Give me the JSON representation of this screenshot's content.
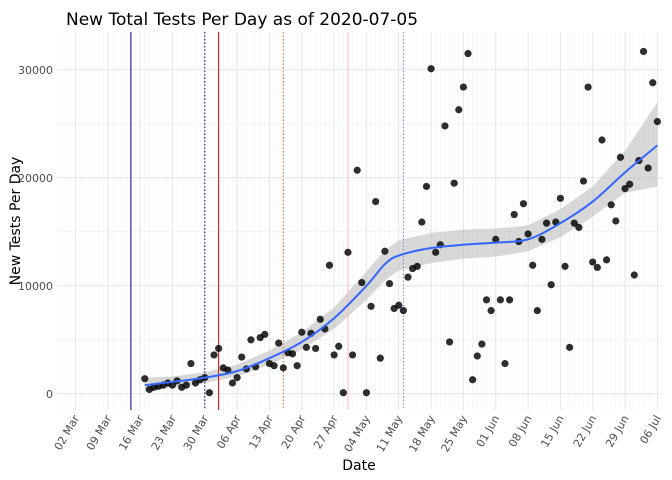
{
  "chart_data": {
    "type": "scatter",
    "title": "New Total Tests Per Day as of 2020-07-05",
    "xlabel": "Date",
    "ylabel": "New Tests Per Day",
    "x_ticks": [
      "02 Mar",
      "09 Mar",
      "16 Mar",
      "23 Mar",
      "30 Mar",
      "06 Apr",
      "13 Apr",
      "20 Apr",
      "27 Apr",
      "04 May",
      "11 May",
      "18 May",
      "25 May",
      "01 Jun",
      "08 Jun",
      "15 Jun",
      "22 Jun",
      "29 Jun",
      "06 Jul"
    ],
    "y_ticks": [
      0,
      10000,
      20000,
      30000
    ],
    "y_tick_labels": [
      "0",
      "10000",
      "20000",
      "30000"
    ],
    "xlim": [
      "2020-02-27",
      "2020-07-07"
    ],
    "ylim": [
      -1500,
      33500
    ],
    "grid": true,
    "point_color": "#000000",
    "smooth_color": "#3366ff",
    "band_color": "#bebebe",
    "vlines": [
      {
        "date": "2020-03-14",
        "color": "#00008b",
        "style": "solid"
      },
      {
        "date": "2020-03-30",
        "color": "#000080",
        "style": "dotted"
      },
      {
        "date": "2020-04-02",
        "color": "#cc0000",
        "style": "solid"
      },
      {
        "date": "2020-04-16",
        "color": "#d2691e",
        "style": "dotted"
      },
      {
        "date": "2020-04-30",
        "color": "#ffb6c1",
        "style": "solid"
      },
      {
        "date": "2020-05-12",
        "color": "#9370db",
        "style": "dotted"
      }
    ],
    "points": [
      {
        "x": "2020-03-17",
        "y": 1400
      },
      {
        "x": "2020-03-18",
        "y": 400
      },
      {
        "x": "2020-03-19",
        "y": 600
      },
      {
        "x": "2020-03-20",
        "y": 700
      },
      {
        "x": "2020-03-21",
        "y": 800
      },
      {
        "x": "2020-03-22",
        "y": 1000
      },
      {
        "x": "2020-03-23",
        "y": 800
      },
      {
        "x": "2020-03-24",
        "y": 1200
      },
      {
        "x": "2020-03-25",
        "y": 600
      },
      {
        "x": "2020-03-26",
        "y": 800
      },
      {
        "x": "2020-03-27",
        "y": 2800
      },
      {
        "x": "2020-03-28",
        "y": 1000
      },
      {
        "x": "2020-03-29",
        "y": 1300
      },
      {
        "x": "2020-03-30",
        "y": 1500
      },
      {
        "x": "2020-03-31",
        "y": 100
      },
      {
        "x": "2020-04-01",
        "y": 3600
      },
      {
        "x": "2020-04-02",
        "y": 4200
      },
      {
        "x": "2020-04-03",
        "y": 2400
      },
      {
        "x": "2020-04-04",
        "y": 2200
      },
      {
        "x": "2020-04-05",
        "y": 1000
      },
      {
        "x": "2020-04-06",
        "y": 1500
      },
      {
        "x": "2020-04-07",
        "y": 3400
      },
      {
        "x": "2020-04-08",
        "y": 2300
      },
      {
        "x": "2020-04-09",
        "y": 5000
      },
      {
        "x": "2020-04-10",
        "y": 2500
      },
      {
        "x": "2020-04-11",
        "y": 5200
      },
      {
        "x": "2020-04-12",
        "y": 5500
      },
      {
        "x": "2020-04-13",
        "y": 2800
      },
      {
        "x": "2020-04-14",
        "y": 2600
      },
      {
        "x": "2020-04-15",
        "y": 4700
      },
      {
        "x": "2020-04-16",
        "y": 2400
      },
      {
        "x": "2020-04-17",
        "y": 3800
      },
      {
        "x": "2020-04-18",
        "y": 3700
      },
      {
        "x": "2020-04-19",
        "y": 2600
      },
      {
        "x": "2020-04-20",
        "y": 5700
      },
      {
        "x": "2020-04-21",
        "y": 4300
      },
      {
        "x": "2020-04-22",
        "y": 5600
      },
      {
        "x": "2020-04-23",
        "y": 4200
      },
      {
        "x": "2020-04-24",
        "y": 6900
      },
      {
        "x": "2020-04-25",
        "y": 6000
      },
      {
        "x": "2020-04-26",
        "y": 11900
      },
      {
        "x": "2020-04-27",
        "y": 3600
      },
      {
        "x": "2020-04-28",
        "y": 4400
      },
      {
        "x": "2020-04-29",
        "y": 100
      },
      {
        "x": "2020-04-30",
        "y": 13100
      },
      {
        "x": "2020-05-01",
        "y": 3600
      },
      {
        "x": "2020-05-02",
        "y": 20700
      },
      {
        "x": "2020-05-03",
        "y": 10300
      },
      {
        "x": "2020-05-04",
        "y": 100
      },
      {
        "x": "2020-05-05",
        "y": 8100
      },
      {
        "x": "2020-05-06",
        "y": 17800
      },
      {
        "x": "2020-05-07",
        "y": 3300
      },
      {
        "x": "2020-05-08",
        "y": 13200
      },
      {
        "x": "2020-05-09",
        "y": 10200
      },
      {
        "x": "2020-05-10",
        "y": 7900
      },
      {
        "x": "2020-05-11",
        "y": 8200
      },
      {
        "x": "2020-05-12",
        "y": 7700
      },
      {
        "x": "2020-05-13",
        "y": 10800
      },
      {
        "x": "2020-05-14",
        "y": 11600
      },
      {
        "x": "2020-05-15",
        "y": 11800
      },
      {
        "x": "2020-05-16",
        "y": 15900
      },
      {
        "x": "2020-05-17",
        "y": 19200
      },
      {
        "x": "2020-05-18",
        "y": 30100
      },
      {
        "x": "2020-05-19",
        "y": 13100
      },
      {
        "x": "2020-05-20",
        "y": 13800
      },
      {
        "x": "2020-05-21",
        "y": 24800
      },
      {
        "x": "2020-05-22",
        "y": 4800
      },
      {
        "x": "2020-05-23",
        "y": 19500
      },
      {
        "x": "2020-05-24",
        "y": 26300
      },
      {
        "x": "2020-05-25",
        "y": 28400
      },
      {
        "x": "2020-05-26",
        "y": 31500
      },
      {
        "x": "2020-05-27",
        "y": 1300
      },
      {
        "x": "2020-05-28",
        "y": 3500
      },
      {
        "x": "2020-05-29",
        "y": 4600
      },
      {
        "x": "2020-05-30",
        "y": 8700
      },
      {
        "x": "2020-05-31",
        "y": 7700
      },
      {
        "x": "2020-06-01",
        "y": 14300
      },
      {
        "x": "2020-06-02",
        "y": 8700
      },
      {
        "x": "2020-06-03",
        "y": 2800
      },
      {
        "x": "2020-06-04",
        "y": 8700
      },
      {
        "x": "2020-06-05",
        "y": 16600
      },
      {
        "x": "2020-06-06",
        "y": 14100
      },
      {
        "x": "2020-06-07",
        "y": 17600
      },
      {
        "x": "2020-06-08",
        "y": 14800
      },
      {
        "x": "2020-06-09",
        "y": 11900
      },
      {
        "x": "2020-06-10",
        "y": 7700
      },
      {
        "x": "2020-06-11",
        "y": 14300
      },
      {
        "x": "2020-06-12",
        "y": 15800
      },
      {
        "x": "2020-06-13",
        "y": 10100
      },
      {
        "x": "2020-06-14",
        "y": 15900
      },
      {
        "x": "2020-06-15",
        "y": 18100
      },
      {
        "x": "2020-06-16",
        "y": 11800
      },
      {
        "x": "2020-06-17",
        "y": 4300
      },
      {
        "x": "2020-06-18",
        "y": 15800
      },
      {
        "x": "2020-06-19",
        "y": 15400
      },
      {
        "x": "2020-06-20",
        "y": 19700
      },
      {
        "x": "2020-06-21",
        "y": 28400
      },
      {
        "x": "2020-06-22",
        "y": 12200
      },
      {
        "x": "2020-06-23",
        "y": 11700
      },
      {
        "x": "2020-06-24",
        "y": 23500
      },
      {
        "x": "2020-06-25",
        "y": 12400
      },
      {
        "x": "2020-06-26",
        "y": 17500
      },
      {
        "x": "2020-06-27",
        "y": 16000
      },
      {
        "x": "2020-06-28",
        "y": 21900
      },
      {
        "x": "2020-06-29",
        "y": 19000
      },
      {
        "x": "2020-06-30",
        "y": 19400
      },
      {
        "x": "2020-07-01",
        "y": 11000
      },
      {
        "x": "2020-07-02",
        "y": 21600
      },
      {
        "x": "2020-07-03",
        "y": 31700
      },
      {
        "x": "2020-07-04",
        "y": 20900
      },
      {
        "x": "2020-07-05",
        "y": 28800
      },
      {
        "x": "2020-07-06",
        "y": 25200
      }
    ],
    "smooth": [
      {
        "x": "2020-03-17",
        "y": 800,
        "lo": 200,
        "hi": 1500
      },
      {
        "x": "2020-03-23",
        "y": 1100,
        "lo": 600,
        "hi": 1600
      },
      {
        "x": "2020-03-30",
        "y": 1500,
        "lo": 1000,
        "hi": 2000
      },
      {
        "x": "2020-04-06",
        "y": 2100,
        "lo": 1600,
        "hi": 2700
      },
      {
        "x": "2020-04-13",
        "y": 3300,
        "lo": 2700,
        "hi": 4000
      },
      {
        "x": "2020-04-20",
        "y": 4800,
        "lo": 4100,
        "hi": 5700
      },
      {
        "x": "2020-04-27",
        "y": 7000,
        "lo": 6000,
        "hi": 8000
      },
      {
        "x": "2020-05-04",
        "y": 10000,
        "lo": 8700,
        "hi": 11300
      },
      {
        "x": "2020-05-08",
        "y": 12000,
        "lo": 10500,
        "hi": 13300
      },
      {
        "x": "2020-05-11",
        "y": 12800,
        "lo": 11400,
        "hi": 14200
      },
      {
        "x": "2020-05-18",
        "y": 13500,
        "lo": 12100,
        "hi": 14900
      },
      {
        "x": "2020-05-25",
        "y": 13800,
        "lo": 12500,
        "hi": 15200
      },
      {
        "x": "2020-06-01",
        "y": 14000,
        "lo": 12700,
        "hi": 15300
      },
      {
        "x": "2020-06-08",
        "y": 14300,
        "lo": 13200,
        "hi": 15600
      },
      {
        "x": "2020-06-15",
        "y": 15800,
        "lo": 14500,
        "hi": 17100
      },
      {
        "x": "2020-06-22",
        "y": 17800,
        "lo": 16400,
        "hi": 19200
      },
      {
        "x": "2020-06-29",
        "y": 20500,
        "lo": 18600,
        "hi": 22500
      },
      {
        "x": "2020-07-06",
        "y": 23000,
        "lo": 19200,
        "hi": 27000
      }
    ]
  }
}
